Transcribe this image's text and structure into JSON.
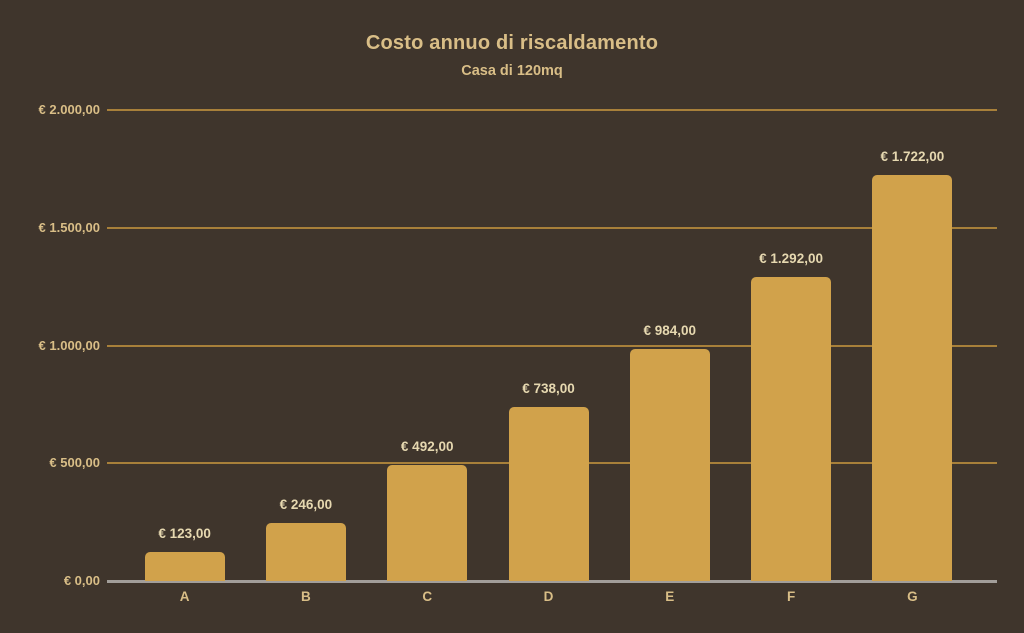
{
  "chart_data": {
    "type": "bar",
    "title": "Costo annuo di riscaldamento",
    "subtitle": "Casa di 120mq",
    "categories": [
      "A",
      "B",
      "C",
      "D",
      "E",
      "F",
      "G"
    ],
    "values": [
      123,
      246,
      492,
      738,
      984,
      1292,
      1722
    ],
    "value_labels": [
      "€ 123,00",
      "€ 246,00",
      "€ 492,00",
      "€ 738,00",
      "€ 984,00",
      "€ 1.292,00",
      "€ 1.722,00"
    ],
    "xlabel": "",
    "ylabel": "",
    "ylim": [
      0,
      2000
    ],
    "y_tick_step": 500,
    "y_tick_labels": [
      "€ 0,00",
      "€ 500,00",
      "€ 1.000,00",
      "€ 1.500,00",
      "€ 2.000,00"
    ],
    "grid": "horizontal",
    "legend": "none"
  },
  "colors": {
    "background": "#3f352c",
    "bar": "#d1a24b",
    "gridline": "#a8803a",
    "baseline": "#a29e9a",
    "axis_text": "#d9be87",
    "value_text": "#e6d8b0"
  }
}
